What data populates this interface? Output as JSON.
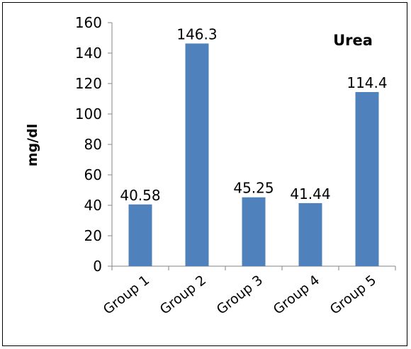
{
  "chart_data": {
    "type": "bar",
    "title": "Urea",
    "ylabel": "mg/dl",
    "xlabel": "",
    "categories": [
      "Group 1",
      "Group 2",
      "Group 3",
      "Group 4",
      "Group 5"
    ],
    "values": [
      40.58,
      146.3,
      45.25,
      41.44,
      114.4
    ],
    "data_labels": [
      "40.58",
      "146.3",
      "45.25",
      "41.44",
      "114.4"
    ],
    "ylim": [
      0,
      160
    ],
    "yticks": [
      "0",
      "20",
      "40",
      "60",
      "80",
      "100",
      "120",
      "140",
      "160"
    ],
    "grid": false,
    "legend": "none",
    "bar_color": "#4F81BD"
  }
}
